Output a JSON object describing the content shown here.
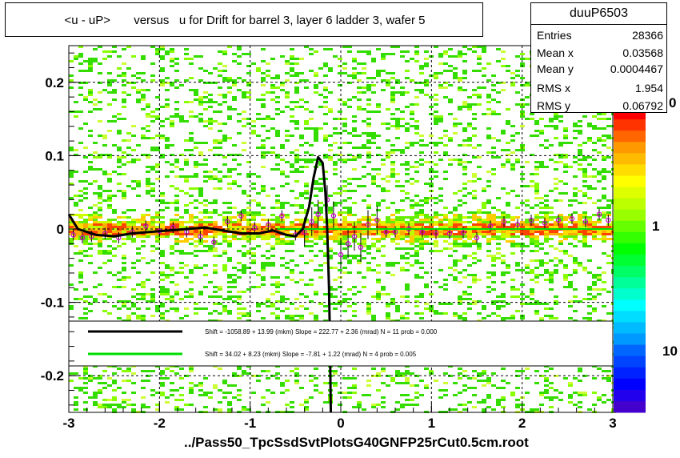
{
  "title": "<u - uP>       versus   u for Drift for barrel 3, layer 6 ladder 3, wafer 5",
  "stats": {
    "name": "duuP6503",
    "rows": [
      {
        "label": "Entries",
        "value": "28366"
      },
      {
        "label": "Mean x",
        "value": "0.03568"
      },
      {
        "label": "Mean y",
        "value": "0.0004467"
      },
      {
        "label": "RMS x",
        "value": "1.954"
      },
      {
        "label": "RMS y",
        "value": "0.06792"
      }
    ]
  },
  "footer": "../Pass50_TpcSsdSvtPlotsG40GNFP25rCut0.5cm.root",
  "legend": [
    {
      "text": "Shift = -1058.89 + 13.99 (mkm) Slope =   222.77 + 2.36 (mrad)  N = 11 prob = 0.000",
      "color": "#000000"
    },
    {
      "text": "Shift =    34.02 + 8.23 (mkm) Slope =    -7.81 + 1.22 (mrad)  N = 4 prob = 0.005",
      "color": "#00dd00"
    }
  ],
  "colorbar": {
    "labels": [
      "1",
      "10"
    ],
    "top_fragment": "0"
  },
  "chart_data": {
    "type": "heatmap",
    "xlim": [
      -3,
      3
    ],
    "ylim": [
      -0.25,
      0.25
    ],
    "x_ticks": [
      "-3",
      "-2",
      "-1",
      "0",
      "1",
      "2",
      "3"
    ],
    "y_ticks": [
      "0.2",
      "0.1",
      "0",
      "-0.1",
      "-0.2"
    ],
    "grid": true,
    "profile_points": [
      {
        "x": -2.95,
        "y": -0.008
      },
      {
        "x": -2.85,
        "y": -0.012
      },
      {
        "x": -2.75,
        "y": -0.01
      },
      {
        "x": -2.6,
        "y": -0.006
      },
      {
        "x": -2.45,
        "y": -0.012
      },
      {
        "x": -2.3,
        "y": -0.004
      },
      {
        "x": -2.15,
        "y": 0.004
      },
      {
        "x": -2.0,
        "y": -0.003
      },
      {
        "x": -1.85,
        "y": 0.002
      },
      {
        "x": -1.7,
        "y": -0.004
      },
      {
        "x": -1.55,
        "y": -0.01
      },
      {
        "x": -1.4,
        "y": -0.018
      },
      {
        "x": -1.25,
        "y": 0.01
      },
      {
        "x": -1.1,
        "y": 0.018
      },
      {
        "x": -0.95,
        "y": 0.002
      },
      {
        "x": -0.8,
        "y": 0.006
      },
      {
        "x": -0.65,
        "y": 0.018
      },
      {
        "x": -0.5,
        "y": -0.008
      },
      {
        "x": -0.4,
        "y": -0.004
      },
      {
        "x": -0.32,
        "y": 0.01
      },
      {
        "x": -0.25,
        "y": 0.02
      },
      {
        "x": -0.15,
        "y": 0.04
      },
      {
        "x": -0.08,
        "y": 0.018
      },
      {
        "x": 0.0,
        "y": -0.035
      },
      {
        "x": 0.08,
        "y": -0.02
      },
      {
        "x": 0.15,
        "y": -0.01
      },
      {
        "x": 0.22,
        "y": -0.025
      },
      {
        "x": 0.3,
        "y": 0.006
      },
      {
        "x": 0.4,
        "y": 0.012
      },
      {
        "x": 0.5,
        "y": -0.004
      },
      {
        "x": 0.6,
        "y": -0.004
      },
      {
        "x": 0.75,
        "y": 0.0
      },
      {
        "x": 0.9,
        "y": -0.004
      },
      {
        "x": 1.05,
        "y": -0.006
      },
      {
        "x": 1.2,
        "y": -0.006
      },
      {
        "x": 1.35,
        "y": -0.005
      },
      {
        "x": 1.5,
        "y": -0.012
      },
      {
        "x": 1.65,
        "y": 0.004
      },
      {
        "x": 1.8,
        "y": 0.01
      },
      {
        "x": 1.95,
        "y": 0.006
      },
      {
        "x": 2.1,
        "y": 0.012
      },
      {
        "x": 2.25,
        "y": 0.008
      },
      {
        "x": 2.4,
        "y": 0.012
      },
      {
        "x": 2.55,
        "y": 0.014
      },
      {
        "x": 2.7,
        "y": 0.01
      },
      {
        "x": 2.85,
        "y": 0.02
      },
      {
        "x": 2.95,
        "y": 0.012
      }
    ],
    "fit_black": [
      [
        -3.0,
        0.02
      ],
      [
        -2.9,
        0.0
      ],
      [
        -2.7,
        -0.008
      ],
      [
        -2.5,
        -0.01
      ],
      [
        -2.3,
        -0.006
      ],
      [
        -2.1,
        -0.004
      ],
      [
        -1.9,
        -0.002
      ],
      [
        -1.7,
        0.0
      ],
      [
        -1.5,
        0.002
      ],
      [
        -1.3,
        -0.002
      ],
      [
        -1.1,
        -0.006
      ],
      [
        -0.9,
        -0.006
      ],
      [
        -0.75,
        -0.002
      ],
      [
        -0.6,
        -0.008
      ],
      [
        -0.5,
        -0.01
      ],
      [
        -0.42,
        0.0
      ],
      [
        -0.35,
        0.03
      ],
      [
        -0.3,
        0.07
      ],
      [
        -0.25,
        0.098
      ],
      [
        -0.2,
        0.09
      ],
      [
        -0.17,
        0.05
      ],
      [
        -0.15,
        0.0
      ],
      [
        -0.13,
        -0.08
      ],
      [
        -0.12,
        -0.15
      ],
      [
        -0.11,
        -0.25
      ]
    ],
    "fit_green": [
      [
        -0.7,
        0.0
      ],
      [
        3.0,
        0.0
      ]
    ]
  }
}
